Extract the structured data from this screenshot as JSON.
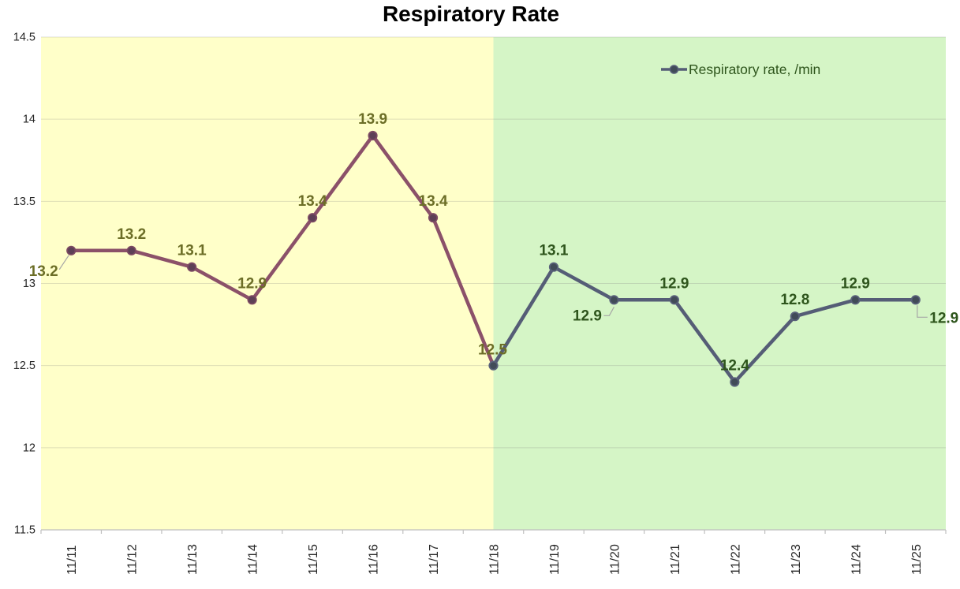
{
  "chart_data": {
    "type": "line",
    "title": "Respiratory Rate",
    "categories": [
      "11/11",
      "11/12",
      "11/13",
      "11/14",
      "11/15",
      "11/16",
      "11/17",
      "11/18",
      "11/19",
      "11/20",
      "11/21",
      "11/22",
      "11/23",
      "11/24",
      "11/25"
    ],
    "series": [
      {
        "name": "Respiratory rate, /min",
        "values": [
          13.2,
          13.2,
          13.1,
          12.9,
          13.4,
          13.9,
          13.4,
          12.5,
          13.1,
          12.9,
          12.9,
          12.4,
          12.8,
          12.9,
          12.9
        ]
      }
    ],
    "ylim": [
      11.5,
      14.5
    ],
    "ytick_step": 0.5,
    "ytick_labels": [
      "14.5",
      "14",
      "13.5",
      "13",
      "12.5",
      "12",
      "11.5"
    ],
    "grid": true,
    "legend": {
      "label": "Respiratory rate, /min",
      "position": "top-right"
    },
    "data_labels_visible": true,
    "zones": [
      {
        "name": "yellow-zone",
        "color": "#FFFFC9",
        "from_category": "11/11",
        "to_category": "11/18"
      },
      {
        "name": "green-zone",
        "color": "#D5F5C6",
        "from_category": "11/18",
        "to_category": "11/25"
      }
    ],
    "colors": {
      "zone_yellow": "#FFFFC9",
      "zone_green": "#D5F5C6",
      "line_yellow_zone": "#8B5169",
      "line_green_zone": "#555D76",
      "marker_yellow_fill": "#5D4056",
      "marker_yellow_stroke": "#7C4A63",
      "marker_green_fill": "#414B58",
      "marker_green_stroke": "#59617A",
      "label_yellow_zone": "#6C6E27",
      "label_green_zone": "#2E551C",
      "gridline": "rgba(128,128,128,0.25)",
      "axis": "#BFBFBF",
      "axis_text": "#262626",
      "leader": "#A6A6A6",
      "legend_text": "#2E551C",
      "title_color": "#000000"
    }
  }
}
